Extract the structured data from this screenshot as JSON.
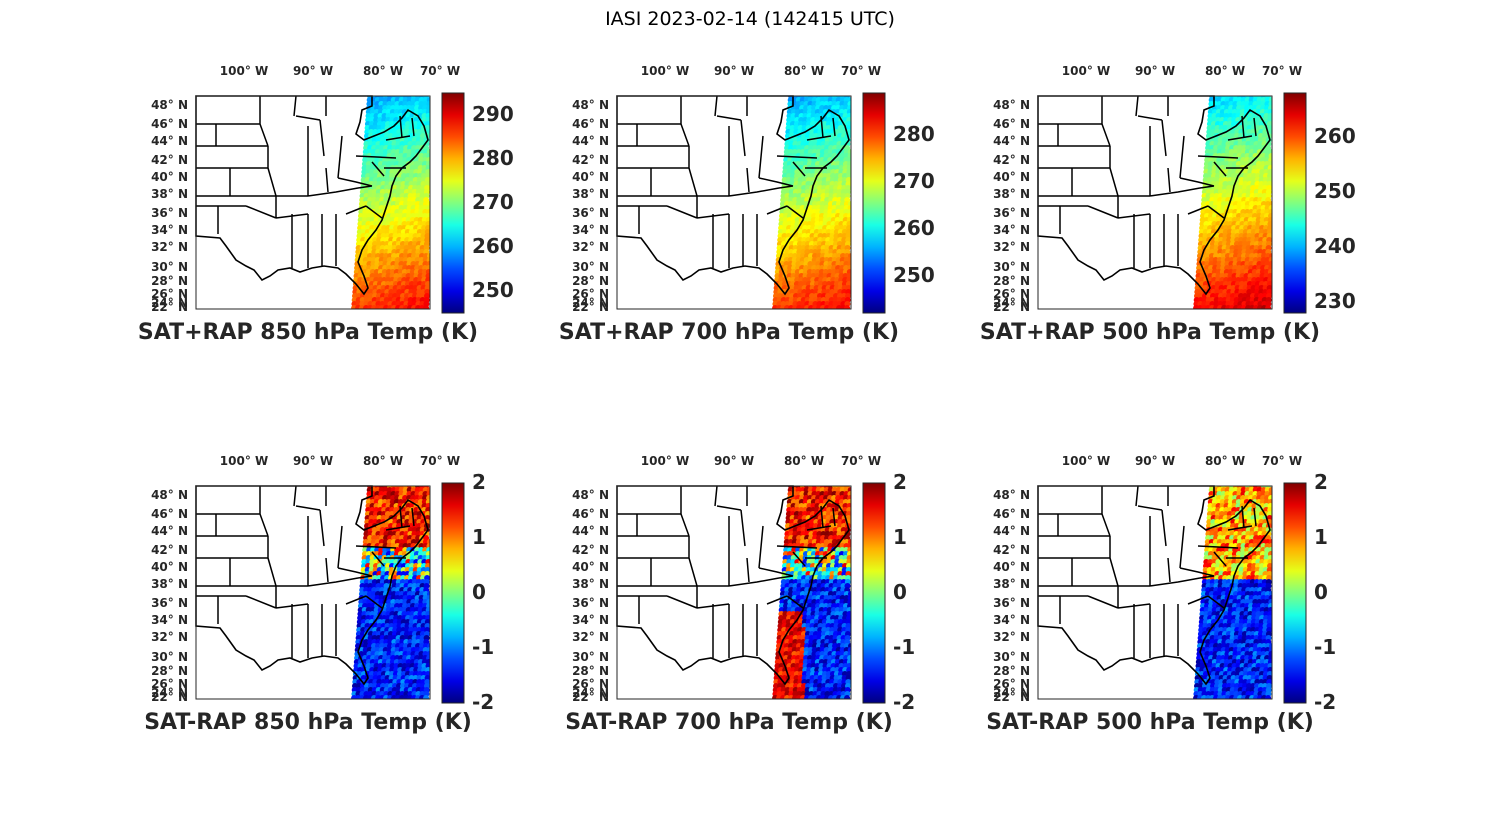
{
  "figure_title": "IASI 2023-02-14 (142415 UTC)",
  "lon_ticks": [
    "100° W",
    "90° W",
    "80° W",
    "70° W"
  ],
  "lat_ticks": [
    "48° N",
    "46° N",
    "44° N",
    "42° N",
    "40° N",
    "38° N",
    "36° N",
    "34° N",
    "32° N",
    "30° N",
    "28° N",
    "26° N",
    "24° N",
    "22° N"
  ],
  "panels": [
    {
      "title": "SAT+RAP 850 hPa Temp (K)",
      "colorbar_ticks": [
        "290",
        "280",
        "270",
        "260",
        "250"
      ],
      "range": [
        245,
        295
      ],
      "kind": "temp"
    },
    {
      "title": "SAT+RAP 700 hPa Temp (K)",
      "colorbar_ticks": [
        "280",
        "270",
        "260",
        "250"
      ],
      "range": [
        242,
        289
      ],
      "kind": "temp"
    },
    {
      "title": "SAT+RAP 500 hPa Temp (K)",
      "colorbar_ticks": [
        "260",
        "250",
        "240",
        "230"
      ],
      "range": [
        228,
        268
      ],
      "kind": "temp"
    },
    {
      "title": "SAT-RAP 850 hPa Temp (K)",
      "colorbar_ticks": [
        "2",
        "1",
        "0",
        "-1",
        "-2"
      ],
      "range": [
        -2,
        2
      ],
      "kind": "diff"
    },
    {
      "title": "SAT-RAP 700 hPa Temp (K)",
      "colorbar_ticks": [
        "2",
        "1",
        "0",
        "-1",
        "-2"
      ],
      "range": [
        -2,
        2
      ],
      "kind": "diff"
    },
    {
      "title": "SAT-RAP 500 hPa Temp (K)",
      "colorbar_ticks": [
        "2",
        "1",
        "0",
        "-1",
        "-2"
      ],
      "range": [
        -2,
        2
      ],
      "kind": "diff"
    }
  ]
}
